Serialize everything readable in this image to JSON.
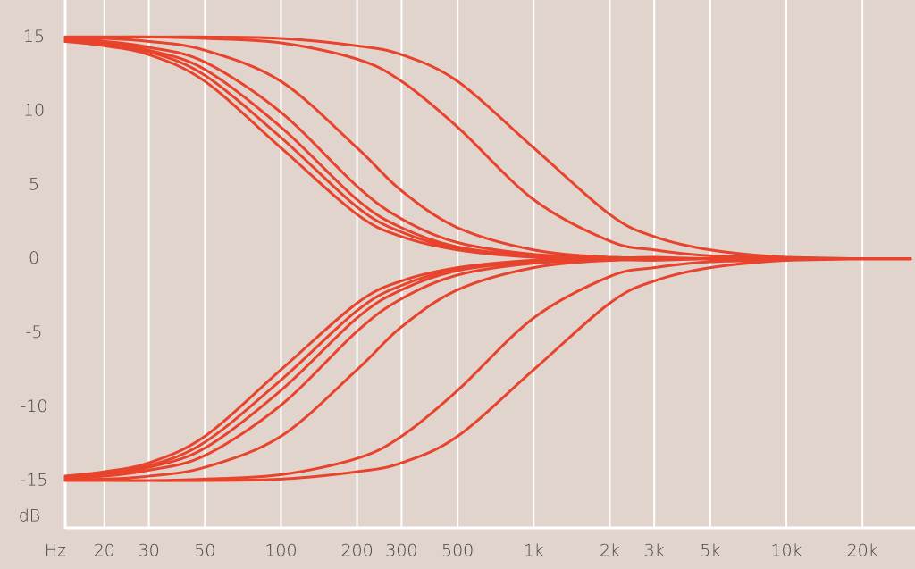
{
  "chart_data": {
    "type": "line",
    "log_x": true,
    "color": "#e8432c",
    "x_label": "Hz",
    "y_label": "dB",
    "x": [
      14,
      20,
      30,
      50,
      100,
      200,
      300,
      500,
      1000,
      2000,
      3000,
      5000,
      10000,
      20000,
      31000
    ],
    "xlim": [
      14,
      31000
    ],
    "ylim": [
      -18.2,
      17.5
    ],
    "xticks": [
      20,
      30,
      50,
      100,
      200,
      300,
      500,
      {
        "value": 1000,
        "label": "1k"
      },
      {
        "value": 2000,
        "label": "2k"
      },
      {
        "value": 3000,
        "label": "3k"
      },
      {
        "value": 5000,
        "label": "5k"
      },
      {
        "value": 10000,
        "label": "10k"
      },
      {
        "value": 20000,
        "label": "20k"
      }
    ],
    "yticks": [
      15,
      10,
      5,
      0,
      -5,
      -10,
      -15
    ],
    "grid": true,
    "series": [
      {
        "values": [
          14.7,
          14.4,
          13.8,
          12,
          7.5,
          3,
          1.5,
          0.6,
          0.1,
          0,
          0,
          0,
          0,
          0,
          0
        ]
      },
      {
        "values": [
          14.7,
          14.5,
          14.0,
          12.4,
          8.2,
          3.5,
          1.8,
          0.7,
          0.2,
          0,
          0,
          0,
          0,
          0,
          0
        ]
      },
      {
        "values": [
          14.8,
          14.6,
          14.1,
          12.8,
          8.9,
          4.0,
          2.1,
          0.8,
          0.2,
          0.1,
          0,
          0,
          0,
          0,
          0
        ]
      },
      {
        "values": [
          14.8,
          14.7,
          14.3,
          13.3,
          9.9,
          4.9,
          2.7,
          1.1,
          0.3,
          0.1,
          0,
          0,
          0,
          0,
          0
        ]
      },
      {
        "values": [
          14.9,
          14.9,
          14.7,
          14.1,
          12,
          7.5,
          4.6,
          2.1,
          0.6,
          0.1,
          0.1,
          0,
          0,
          0,
          0
        ]
      },
      {
        "values": [
          15,
          15,
          15,
          14.9,
          14.6,
          13.5,
          12,
          8.9,
          4.0,
          1.2,
          0.6,
          0.2,
          0.1,
          0,
          0
        ]
      },
      {
        "values": [
          15,
          15,
          15,
          15,
          14.9,
          14.4,
          13.8,
          12,
          7.5,
          3,
          1.5,
          0.6,
          0.1,
          0,
          0
        ]
      },
      {
        "values": [
          -14.7,
          -14.4,
          -13.8,
          -12,
          -7.5,
          -3,
          -1.5,
          -0.6,
          -0.1,
          0,
          0,
          0,
          0,
          0,
          0
        ]
      },
      {
        "values": [
          -14.7,
          -14.5,
          -14.0,
          -12.4,
          -8.2,
          -3.5,
          -1.8,
          -0.7,
          -0.2,
          0,
          0,
          0,
          0,
          0,
          0
        ]
      },
      {
        "values": [
          -14.8,
          -14.6,
          -14.1,
          -12.8,
          -8.9,
          -4.0,
          -2.1,
          -0.8,
          -0.2,
          -0.1,
          0,
          0,
          0,
          0,
          0
        ]
      },
      {
        "values": [
          -14.8,
          -14.7,
          -14.3,
          -13.3,
          -9.9,
          -4.9,
          -2.7,
          -1.1,
          -0.3,
          -0.1,
          0,
          0,
          0,
          0,
          0
        ]
      },
      {
        "values": [
          -14.9,
          -14.9,
          -14.7,
          -14.1,
          -12,
          -7.5,
          -4.6,
          -2.1,
          -0.6,
          -0.1,
          -0.1,
          0,
          0,
          0,
          0
        ]
      },
      {
        "values": [
          -15,
          -15,
          -15,
          -14.9,
          -14.6,
          -13.5,
          -12,
          -8.9,
          -4.0,
          -1.2,
          -0.6,
          -0.2,
          -0.1,
          0,
          0
        ]
      },
      {
        "values": [
          -15,
          -15,
          -15,
          -15,
          -14.9,
          -14.4,
          -13.8,
          -12,
          -7.5,
          -3,
          -1.5,
          -0.6,
          -0.1,
          0,
          0
        ]
      }
    ]
  }
}
